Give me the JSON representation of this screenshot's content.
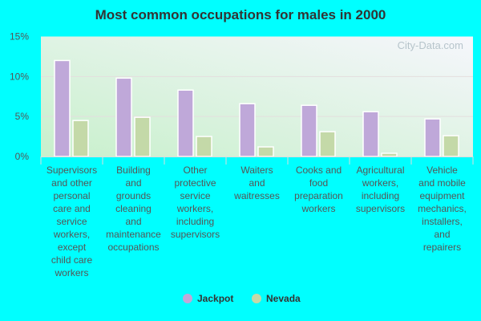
{
  "chart_data": {
    "type": "bar",
    "title": "Most common occupations for males in 2000",
    "categories": [
      [
        "Supervisors",
        "and other",
        "personal",
        "care and",
        "service",
        "workers,",
        "except",
        "child care",
        "workers"
      ],
      [
        "Building",
        "and",
        "grounds",
        "cleaning",
        "and",
        "maintenance",
        "occupations"
      ],
      [
        "Other",
        "protective",
        "service",
        "workers,",
        "including",
        "supervisors"
      ],
      [
        "Waiters",
        "and",
        "waitresses"
      ],
      [
        "Cooks and",
        "food",
        "preparation",
        "workers"
      ],
      [
        "Agricultural",
        "workers,",
        "including",
        "supervisors"
      ],
      [
        "Vehicle",
        "and mobile",
        "equipment",
        "mechanics,",
        "installers,",
        "and",
        "repairers"
      ]
    ],
    "series": [
      {
        "name": "Jackpot",
        "color": "#bfa8d9",
        "values": [
          12.0,
          9.8,
          8.3,
          6.6,
          6.4,
          5.6,
          4.7
        ]
      },
      {
        "name": "Nevada",
        "color": "#c4d9a8",
        "values": [
          4.5,
          4.9,
          2.5,
          1.2,
          3.1,
          0.4,
          2.6
        ]
      }
    ],
    "ylim": [
      0,
      15
    ],
    "yticks": [
      0,
      5,
      10,
      15
    ],
    "ytick_labels": [
      "0%",
      "5%",
      "10%",
      "15%"
    ],
    "grid": true,
    "legend_placement": "bottom",
    "watermark": "City-Data.com"
  }
}
